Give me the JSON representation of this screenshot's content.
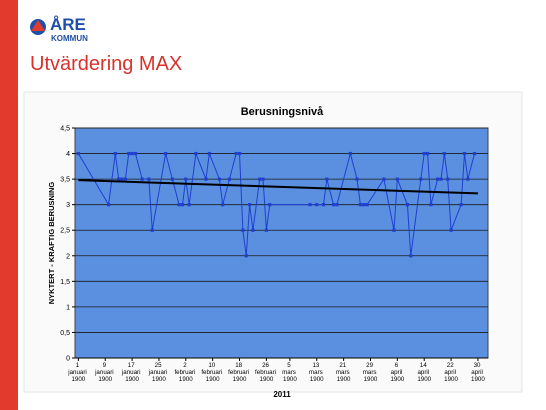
{
  "logo": {
    "name": "ÅRE",
    "sub": "KOMMUN"
  },
  "slide_title": "Utvärdering MAX",
  "chart_data": {
    "type": "line",
    "title": "Berusningsnivå",
    "y_label": "NYKTERT - KRAFTIG BERUSNING",
    "x_label": "2011",
    "color": "#1f3fd0",
    "x": [
      1,
      10,
      12,
      13,
      14,
      15,
      16,
      17,
      18,
      20,
      22,
      23,
      27,
      29,
      31,
      32,
      33,
      34,
      36,
      39,
      40,
      43,
      44,
      46,
      48,
      49,
      50,
      51,
      52,
      53,
      55,
      56,
      57,
      58,
      70,
      72,
      74,
      75,
      77,
      78,
      82,
      84,
      85,
      86,
      87,
      92,
      95,
      96,
      99,
      100,
      103,
      104,
      105,
      106,
      108,
      109,
      110,
      111,
      112,
      115,
      116,
      117,
      119
    ],
    "values": [
      4,
      3,
      4,
      3.5,
      3.5,
      3.5,
      4,
      4,
      4,
      3.5,
      3.5,
      2.5,
      4,
      3.5,
      3,
      3,
      3.5,
      3,
      4,
      3.5,
      4,
      3.5,
      3,
      3.5,
      4,
      4,
      2.5,
      2,
      3,
      2.5,
      3.5,
      3.5,
      2.5,
      3,
      3,
      3,
      3,
      3.5,
      3,
      3,
      4,
      3.5,
      3,
      3,
      3,
      3.5,
      2.5,
      3.5,
      3,
      2,
      3.5,
      4,
      4,
      3,
      3.5,
      3.5,
      4,
      3.5,
      2.5,
      3,
      4,
      3.5,
      4
    ],
    "trend": {
      "color": "#000000",
      "x": [
        1,
        120
      ],
      "values": [
        3.48,
        3.22
      ]
    },
    "xlim": [
      0,
      123
    ],
    "xticks": [
      {
        "value": 1,
        "label": "1 januari 1900"
      },
      {
        "value": 9,
        "label": "9 januari 1900"
      },
      {
        "value": 17,
        "label": "17 januari 1900"
      },
      {
        "value": 25,
        "label": "25 januari 1900"
      },
      {
        "value": 33,
        "label": "2 februari 1900"
      },
      {
        "value": 41,
        "label": "10 februari 1900"
      },
      {
        "value": 49,
        "label": "18 februari 1900"
      },
      {
        "value": 57,
        "label": "26 februari 1900"
      },
      {
        "value": 64,
        "label": "5 mars 1900"
      },
      {
        "value": 72,
        "label": "13 mars 1900"
      },
      {
        "value": 80,
        "label": "21 mars 1900"
      },
      {
        "value": 88,
        "label": "29 mars 1900"
      },
      {
        "value": 96,
        "label": "6 april 1900"
      },
      {
        "value": 104,
        "label": "14 april 1900"
      },
      {
        "value": 112,
        "label": "22 april 1900"
      },
      {
        "value": 120,
        "label": "30 april 1900"
      }
    ],
    "ylim": [
      0,
      4.5
    ],
    "yticks": [
      0,
      {
        "value": 0.5,
        "label": "0,5"
      },
      1,
      {
        "value": 1.5,
        "label": "1,5"
      },
      2,
      {
        "value": 2.5,
        "label": "2,5"
      },
      3,
      {
        "value": 3.5,
        "label": "3,5"
      },
      4,
      {
        "value": 4.5,
        "label": "4,5"
      }
    ],
    "grid": true,
    "plot_background": "#5b8fe0"
  }
}
